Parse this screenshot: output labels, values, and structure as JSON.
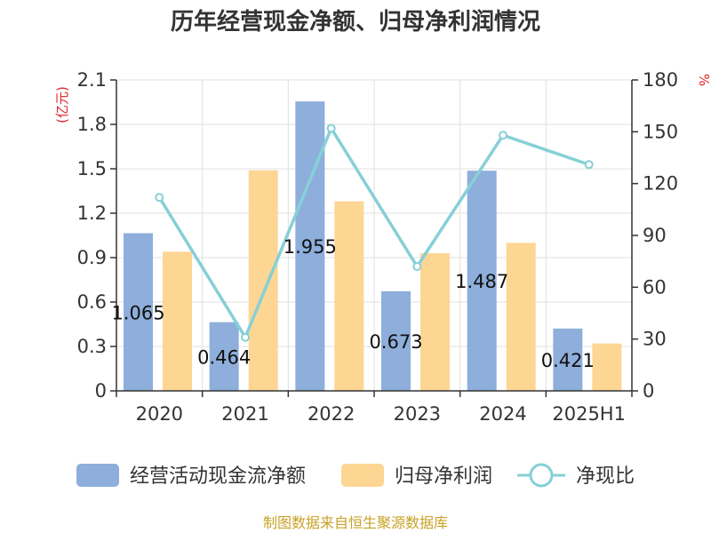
{
  "chart_data": {
    "type": "bar",
    "title": "历年经营现金净额、归母净利润情况",
    "categories": [
      "2020",
      "2021",
      "2022",
      "2023",
      "2024",
      "2025H1"
    ],
    "left_axis": {
      "unit_label": "(亿元)",
      "ylim": [
        0,
        2.1
      ],
      "ticks": [
        "0",
        "0.3",
        "0.6",
        "0.9",
        "1.2",
        "1.5",
        "1.8",
        "2.1"
      ]
    },
    "right_axis": {
      "unit_label": "%",
      "ylim": [
        0,
        180
      ],
      "ticks": [
        "0",
        "30",
        "60",
        "90",
        "120",
        "150",
        "180"
      ]
    },
    "series": [
      {
        "name": "经营活动现金流净额",
        "type": "bar",
        "axis": "left",
        "values": [
          1.065,
          0.464,
          1.955,
          0.673,
          1.487,
          0.421
        ],
        "data_labels": [
          "1.065",
          "0.464",
          "1.955",
          "0.673",
          "1.487",
          "0.421"
        ]
      },
      {
        "name": "归母净利润",
        "type": "bar",
        "axis": "left",
        "values": [
          0.94,
          1.49,
          1.28,
          0.93,
          1.0,
          0.32
        ]
      },
      {
        "name": "净现比",
        "type": "line",
        "axis": "right",
        "values": [
          112,
          31,
          152,
          72,
          148,
          131
        ]
      }
    ],
    "legend_position": "bottom",
    "grid": true
  },
  "colors": {
    "bar_cash": "#8eaedb",
    "bar_profit": "#fdd694",
    "line_ratio": "#86d0d6",
    "grid": "#e0e0e0",
    "axis": "#333333",
    "unit": "#e0242b",
    "source": "#c9a227"
  },
  "source_note": "制图数据来自恒生聚源数据库"
}
